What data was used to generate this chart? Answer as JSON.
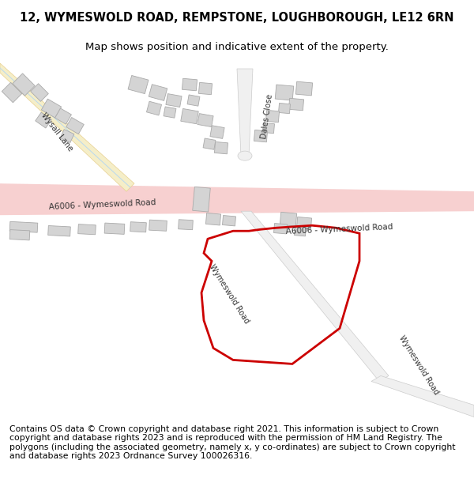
{
  "title": "12, WYMESWOLD ROAD, REMPSTONE, LOUGHBOROUGH, LE12 6RN",
  "subtitle": "Map shows position and indicative extent of the property.",
  "footer": "Contains OS data © Crown copyright and database right 2021. This information is subject to Crown copyright and database rights 2023 and is reproduced with the permission of HM Land Registry. The polygons (including the associated geometry, namely x, y co-ordinates) are subject to Crown copyright and database rights 2023 Ordnance Survey 100026316.",
  "bg_color": "#ffffff",
  "road_major_color": "#f7d0d0",
  "road_wysall_color": "#f5eec8",
  "road_minor_color": "#eeeeee",
  "building_color": "#d4d4d4",
  "building_edge": "#aaaaaa",
  "red_polygon_color": "#cc0000",
  "title_fontsize": 10.5,
  "subtitle_fontsize": 9.5,
  "footer_fontsize": 7.8,
  "label_color": "#333333"
}
